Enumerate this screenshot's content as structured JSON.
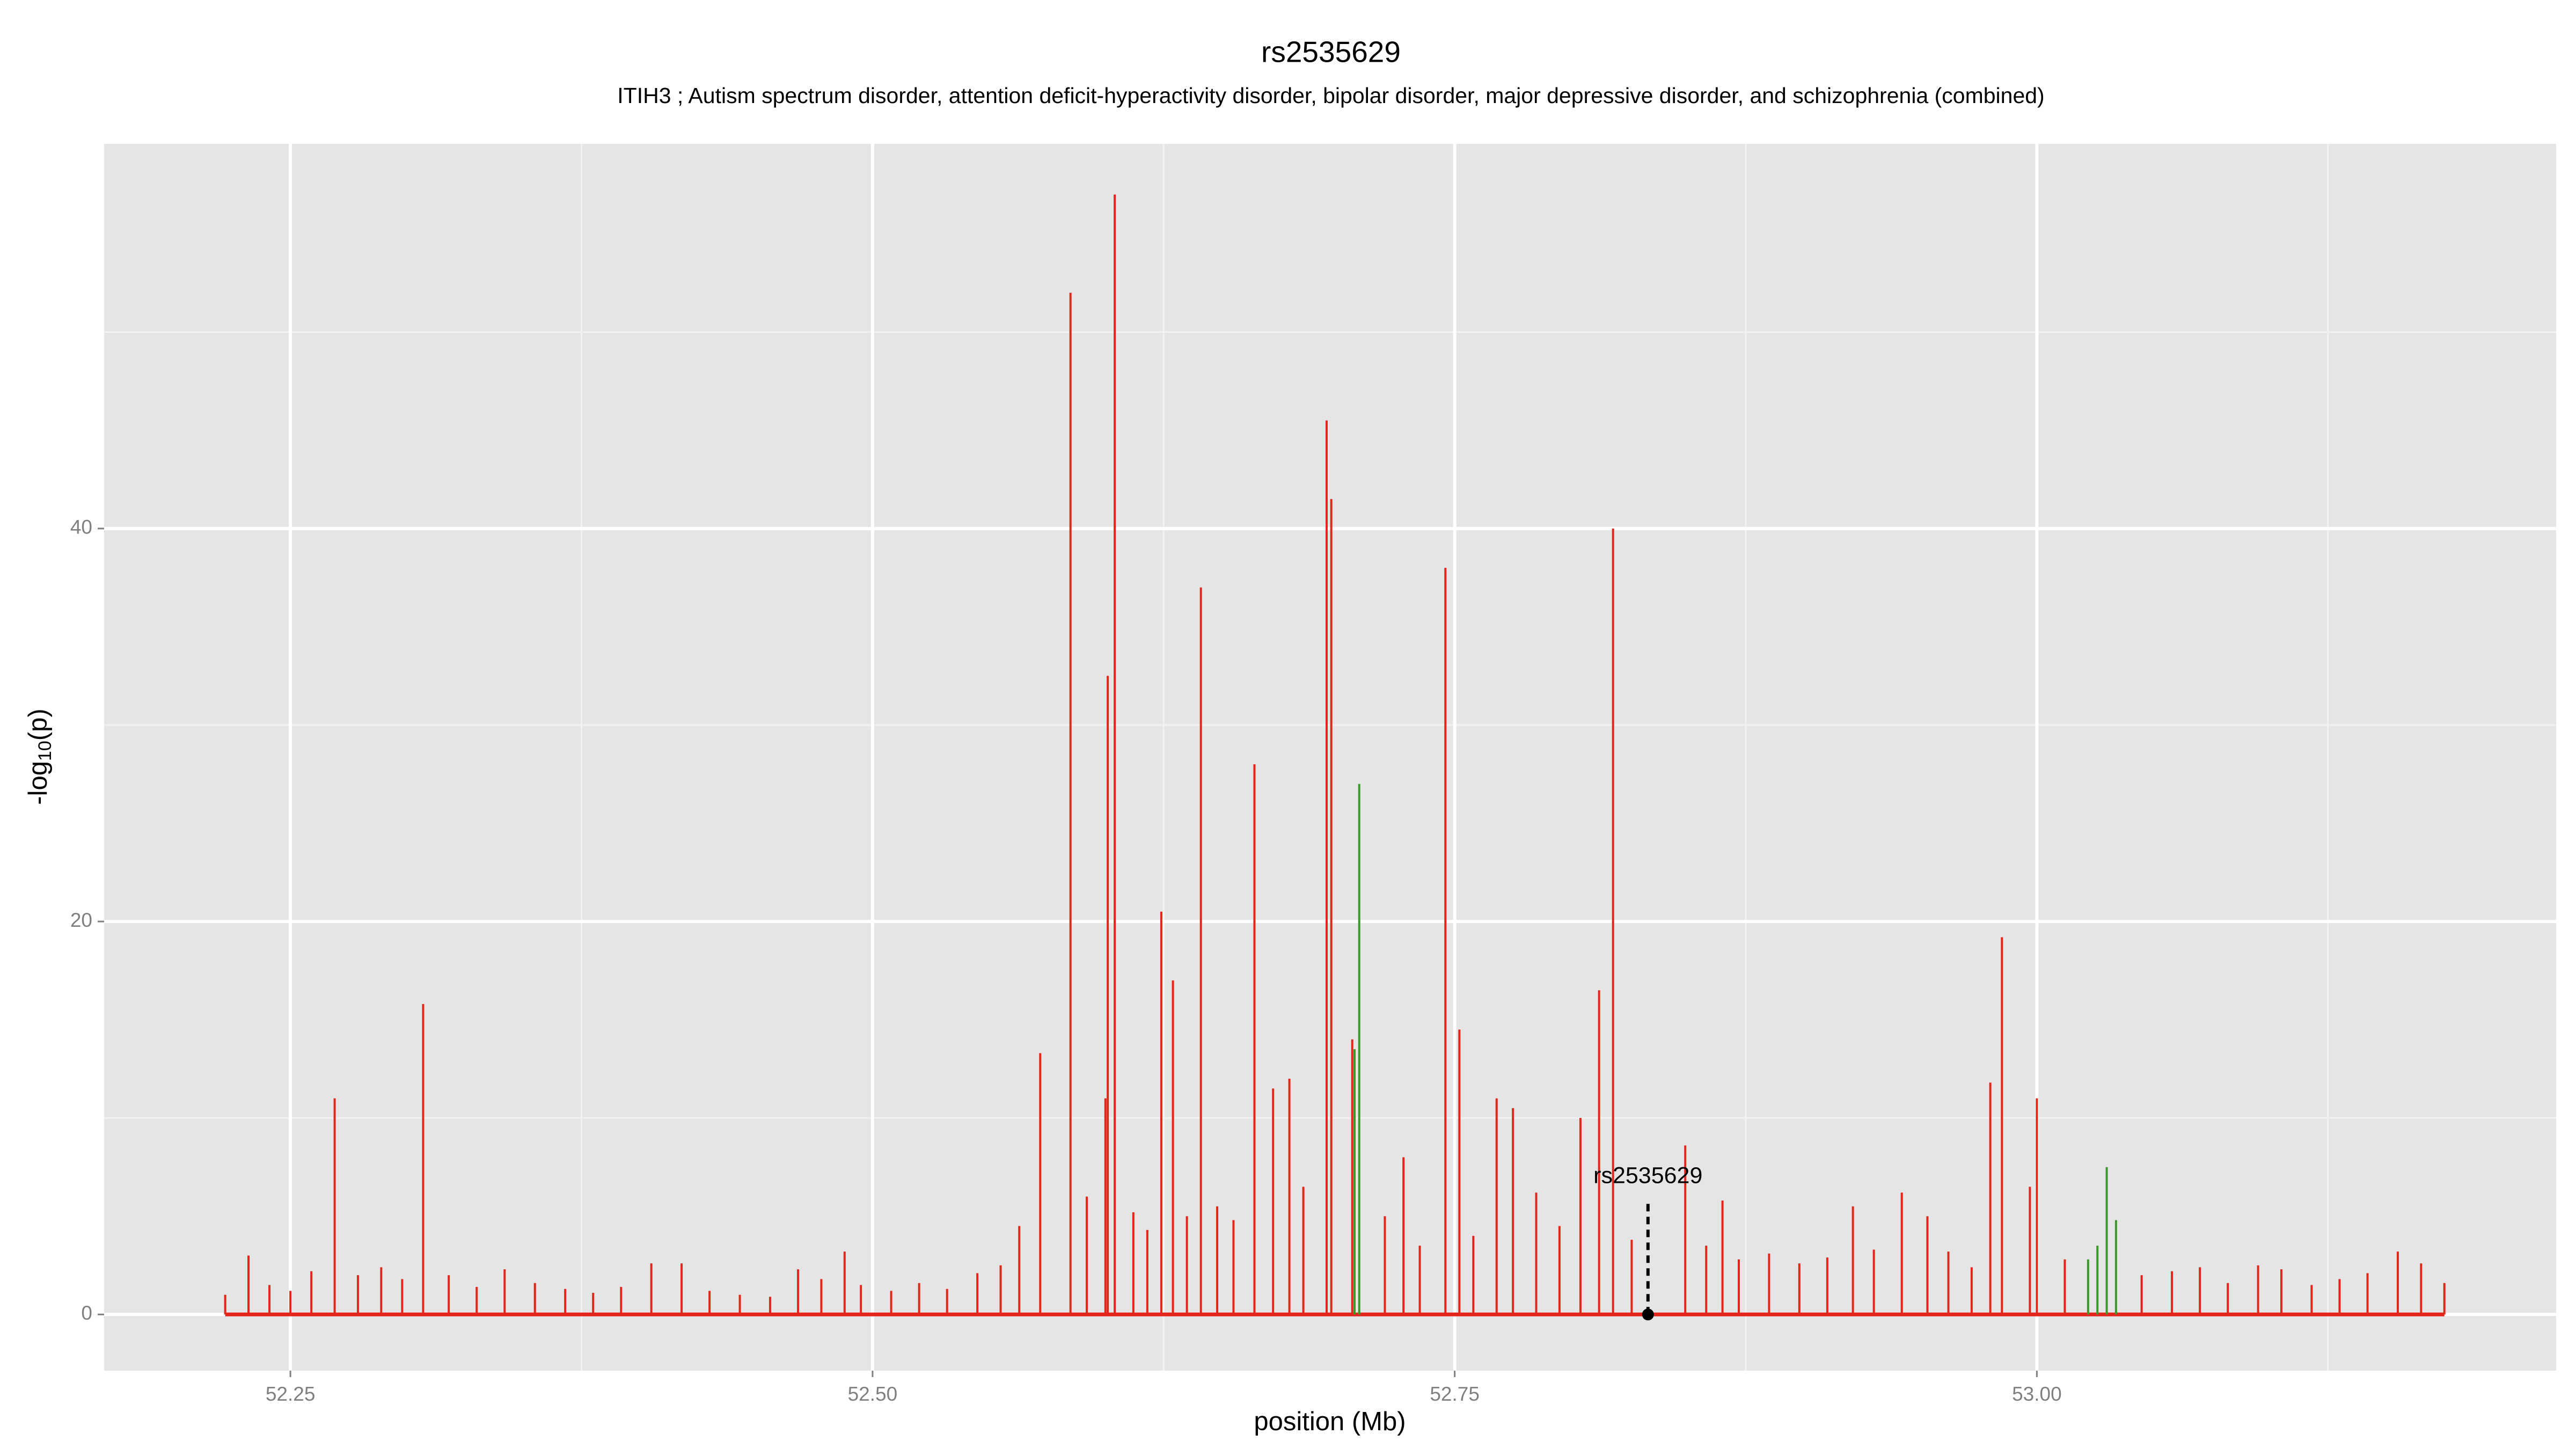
{
  "chart_data": {
    "type": "spike",
    "title": "rs2535629",
    "subtitle": "ITIH3 ; Autism spectrum disorder, attention deficit-hyperactivity disorder, bipolar disorder, major depressive disorder, and schizophrenia (combined)",
    "xlabel": "position (Mb)",
    "ylabel_main": "-log",
    "ylabel_sub": "10",
    "ylabel_tail": "(p)",
    "xlim": [
      52.17,
      53.223
    ],
    "ylim": [
      -2.86,
      59.58
    ],
    "xticks": [
      {
        "value": 52.25,
        "label": "52.25"
      },
      {
        "value": 52.5,
        "label": "52.50"
      },
      {
        "value": 52.75,
        "label": "52.75"
      },
      {
        "value": 53.0,
        "label": "53.00"
      }
    ],
    "yticks": [
      0,
      20,
      40
    ],
    "xminor": [
      52.375,
      52.625,
      52.875,
      53.125
    ],
    "yminor": [
      10,
      30,
      50
    ],
    "grid": true,
    "background": "#e5e5e5",
    "series": [
      {
        "color": "#e3261b",
        "x": [
          52.269,
          52.307,
          52.572,
          52.585,
          52.6,
          52.601,
          52.604,
          52.624,
          52.629,
          52.641,
          52.664,
          52.672,
          52.679,
          52.695,
          52.697,
          52.706,
          52.728,
          52.746,
          52.752,
          52.768,
          52.775,
          52.804,
          52.812,
          52.818,
          52.849,
          52.865,
          52.921,
          52.942,
          52.953,
          52.98,
          52.985,
          52.997,
          53.0,
          52.488,
          52.222,
          52.232,
          52.241,
          52.25,
          52.259,
          52.279,
          52.289,
          52.298,
          52.318,
          52.33,
          52.342,
          52.355,
          52.368,
          52.38,
          52.392,
          52.405,
          52.418,
          52.43,
          52.443,
          52.456,
          52.468,
          52.478,
          52.495,
          52.508,
          52.52,
          52.532,
          52.545,
          52.555,
          52.563,
          52.592,
          52.612,
          52.618,
          52.635,
          52.648,
          52.655,
          52.685,
          52.72,
          52.735,
          52.758,
          52.785,
          52.795,
          52.826,
          52.858,
          52.872,
          52.885,
          52.898,
          52.91,
          52.93,
          52.962,
          52.972,
          53.012,
          53.045,
          53.058,
          53.07,
          53.082,
          53.095,
          53.105,
          53.118,
          53.13,
          53.142,
          53.155,
          53.165,
          53.175
        ],
        "values": [
          11,
          15.8,
          13.3,
          52,
          11,
          32.5,
          57,
          20.5,
          17,
          37,
          28,
          11.5,
          12,
          45.5,
          41.5,
          14,
          8,
          38,
          14.5,
          11,
          10.5,
          10,
          16.5,
          40,
          8.6,
          5.8,
          5.5,
          6.2,
          5,
          11.8,
          19.2,
          6.5,
          11,
          3.2,
          1,
          3,
          1.5,
          1.2,
          2.2,
          2,
          2.4,
          1.8,
          2,
          1.4,
          2.3,
          1.6,
          1.3,
          1.1,
          1.4,
          2.6,
          2.6,
          1.2,
          1,
          0.9,
          2.3,
          1.8,
          1.5,
          1.2,
          1.6,
          1.3,
          2.1,
          2.5,
          4.5,
          6,
          5.2,
          4.3,
          5,
          5.5,
          4.8,
          6.5,
          5,
          3.5,
          4,
          6.2,
          4.5,
          3.8,
          3.5,
          2.8,
          3.1,
          2.6,
          2.9,
          3.3,
          3.2,
          2.4,
          2.8,
          2,
          2.2,
          2.4,
          1.6,
          2.5,
          2.3,
          1.5,
          1.8,
          2.1,
          3.2,
          2.6,
          1.6
        ]
      },
      {
        "color": "#3a9a2a",
        "x": [
          52.709,
          52.707,
          53.03,
          53.026,
          53.034,
          53.022
        ],
        "values": [
          27,
          13.5,
          7.5,
          3.5,
          4.8,
          2.8
        ]
      }
    ],
    "annotation": {
      "label": "rs2535629",
      "x": 52.833,
      "y": 0,
      "line_top": 5.7,
      "label_y": 7
    }
  }
}
